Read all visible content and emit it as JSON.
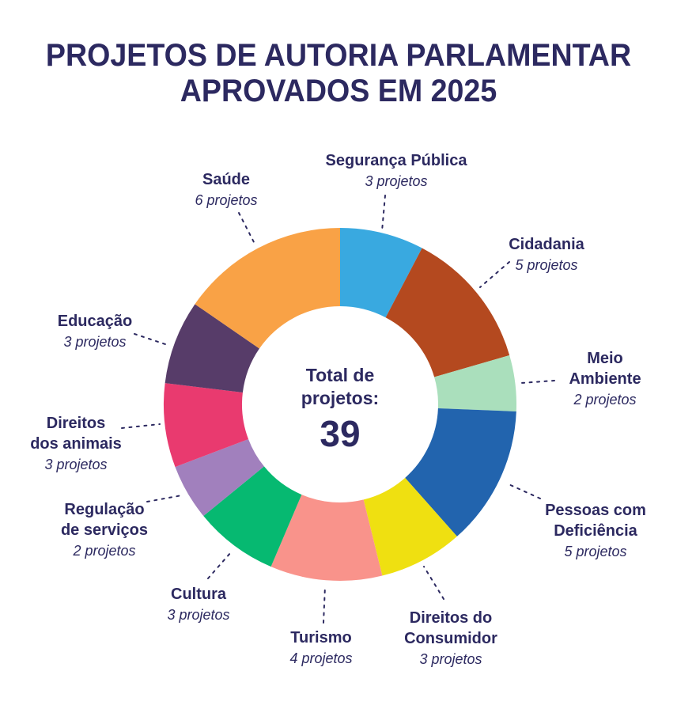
{
  "title": "PROJETOS DE AUTORIA PARLAMENTAR\nAPROVADOS EM 2025",
  "colors": {
    "text": "#2C2960",
    "background": "#FFFFFF"
  },
  "chart_data": {
    "type": "pie",
    "subtype": "donut",
    "title": "PROJETOS DE AUTORIA PARLAMENTAR APROVADOS EM 2025",
    "total": 39,
    "unit": "projetos",
    "start_angle_deg": 0,
    "direction": "clockwise",
    "donut_hole": true,
    "label_style": "outside callouts with dashed leader lines",
    "center_label": {
      "text": "Total de\nprojetos:",
      "value": "39"
    },
    "slices": [
      {
        "id": "seguranca-publica",
        "label": "Segurança Pública",
        "value": 3,
        "count_label": "3 projetos",
        "color": "#39A9E0"
      },
      {
        "id": "cidadania",
        "label": "Cidadania",
        "value": 5,
        "count_label": "5 projetos",
        "color": "#B4491F"
      },
      {
        "id": "meio-ambiente",
        "label": "Meio\nAmbiente",
        "value": 2,
        "count_label": "2 projetos",
        "color": "#AADFBC"
      },
      {
        "id": "pessoas-com-deficiencia",
        "label": "Pessoas com\nDeficiência",
        "value": 5,
        "count_label": "5 projetos",
        "color": "#2264AE"
      },
      {
        "id": "direitos-do-consumidor",
        "label": "Direitos do\nConsumidor",
        "value": 3,
        "count_label": "3 projetos",
        "color": "#EFE011"
      },
      {
        "id": "turismo",
        "label": "Turismo",
        "value": 4,
        "count_label": "4 projetos",
        "color": "#F9938B"
      },
      {
        "id": "cultura",
        "label": "Cultura",
        "value": 3,
        "count_label": "3 projetos",
        "color": "#06B971"
      },
      {
        "id": "regulacao-de-servicos",
        "label": "Regulação\nde serviços",
        "value": 2,
        "count_label": "2 projetos",
        "color": "#A180BD"
      },
      {
        "id": "direitos-dos-animais",
        "label": "Direitos\ndos animais",
        "value": 3,
        "count_label": "3 projetos",
        "color": "#E93A6F"
      },
      {
        "id": "educacao",
        "label": "Educação",
        "value": 3,
        "count_label": "3 projetos",
        "color": "#573C69"
      },
      {
        "id": "saude",
        "label": "Saúde",
        "value": 6,
        "count_label": "6 projetos",
        "color": "#F9A246"
      }
    ]
  }
}
